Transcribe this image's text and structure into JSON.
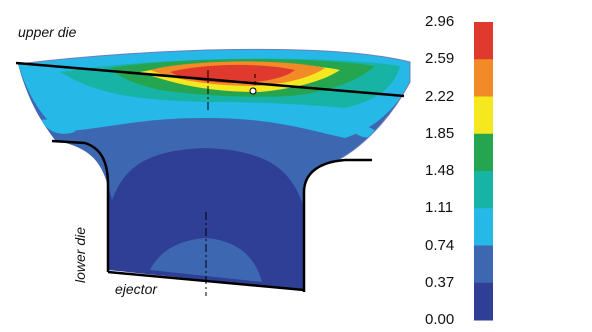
{
  "labels": {
    "upper_die": "upper die",
    "lower_die": "lower die",
    "ejector": "ejector"
  },
  "colorbar": {
    "ticks": [
      "2.96",
      "2.59",
      "2.22",
      "1.85",
      "1.48",
      "1.11",
      "0.74",
      "0.37",
      "0.00"
    ],
    "colors": [
      "#e03a2f",
      "#f28a27",
      "#f6e81e",
      "#25a550",
      "#17b4a6",
      "#26b8e6",
      "#3e67b2",
      "#2e3f95"
    ]
  }
}
